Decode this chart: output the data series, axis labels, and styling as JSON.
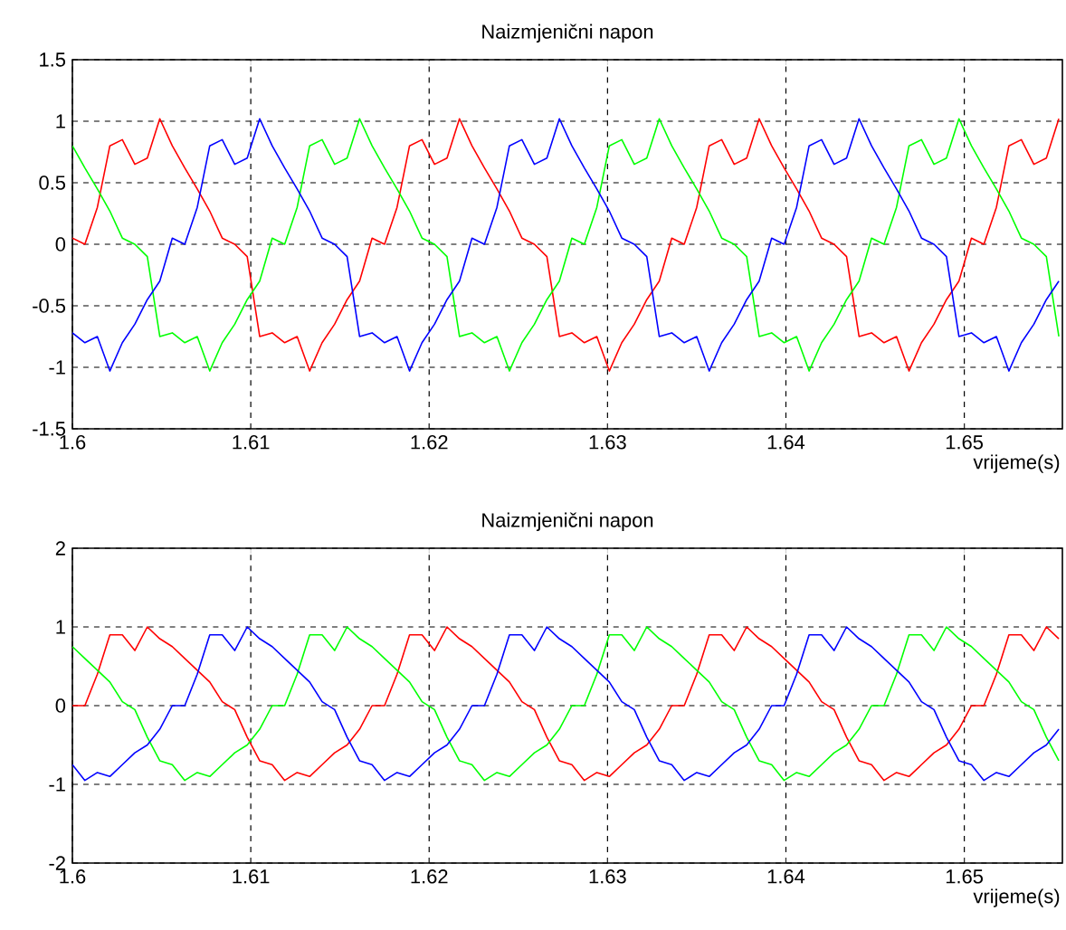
{
  "chart_data": [
    {
      "type": "line",
      "title": "Naizmjenični napon",
      "xlabel": "vrijeme(s)",
      "xlim": [
        1.6,
        1.6555
      ],
      "xticks": [
        1.6,
        1.61,
        1.62,
        1.63,
        1.64,
        1.65
      ],
      "ylim": [
        -1.5,
        1.5
      ],
      "yticks": [
        -1.5,
        -1,
        -0.5,
        0,
        0.5,
        1,
        1.5
      ],
      "grid": true,
      "x": [
        1.6,
        1.6007,
        1.6014,
        1.6021,
        1.6028,
        1.6035,
        1.6042,
        1.6049,
        1.6056,
        1.6063,
        1.607,
        1.6077,
        1.6084,
        1.6091,
        1.6098,
        1.6105,
        1.6112,
        1.6119,
        1.6126,
        1.6133,
        1.614,
        1.6147,
        1.6154,
        1.6161,
        1.6168,
        1.6175,
        1.6182,
        1.6189,
        1.6196,
        1.6203,
        1.621,
        1.6217,
        1.6224,
        1.6231,
        1.6238,
        1.6245,
        1.6252,
        1.6259,
        1.6266,
        1.6273,
        1.628,
        1.6287,
        1.6294,
        1.6301,
        1.6308,
        1.6315,
        1.6322,
        1.6329,
        1.6336,
        1.6343,
        1.635,
        1.6357,
        1.6364,
        1.6371,
        1.6378,
        1.6385,
        1.6392,
        1.6399,
        1.6406,
        1.6413,
        1.642,
        1.6427,
        1.6434,
        1.6441,
        1.6448,
        1.6455,
        1.6462,
        1.6469,
        1.6476,
        1.6483,
        1.649,
        1.6497,
        1.6504,
        1.6511,
        1.6518,
        1.6525,
        1.6532,
        1.6539,
        1.6546,
        1.6553
      ],
      "series": [
        {
          "color": "#ff0000",
          "values": [
            0.05,
            0,
            0.3,
            0.8,
            0.85,
            0.65,
            0.7,
            1.02,
            0.8,
            0.62,
            0.45,
            0.27,
            0.05,
            0,
            -0.1,
            -0.75,
            -0.72,
            -0.8,
            -0.75,
            -1.03,
            -0.8,
            -0.65,
            -0.45,
            -0.3,
            0.05,
            0,
            0.3,
            0.8,
            0.85,
            0.65,
            0.7,
            1.02,
            0.8,
            0.62,
            0.45,
            0.27,
            0.05,
            0,
            -0.1,
            -0.75,
            -0.72,
            -0.8,
            -0.75,
            -1.03,
            -0.8,
            -0.65,
            -0.45,
            -0.3,
            0.05,
            0,
            0.3,
            0.8,
            0.85,
            0.65,
            0.7,
            1.02,
            0.8,
            0.62,
            0.45,
            0.27,
            0.05,
            0,
            -0.1,
            -0.75,
            -0.72,
            -0.8,
            -0.75,
            -1.03,
            -0.8,
            -0.65,
            -0.45,
            -0.3,
            0.05,
            0,
            0.3,
            0.8,
            0.85,
            0.65,
            0.7,
            1.02
          ]
        },
        {
          "color": "#00ff00",
          "values": [
            0.8,
            0.62,
            0.45,
            0.27,
            0.05,
            0,
            -0.1,
            -0.75,
            -0.72,
            -0.8,
            -0.75,
            -1.03,
            -0.8,
            -0.65,
            -0.45,
            -0.3,
            0.05,
            0,
            0.3,
            0.8,
            0.85,
            0.65,
            0.7,
            1.02,
            0.8,
            0.62,
            0.45,
            0.27,
            0.05,
            0,
            -0.1,
            -0.75,
            -0.72,
            -0.8,
            -0.75,
            -1.03,
            -0.8,
            -0.65,
            -0.45,
            -0.3,
            0.05,
            0,
            0.3,
            0.8,
            0.85,
            0.65,
            0.7,
            1.02,
            0.8,
            0.62,
            0.45,
            0.27,
            0.05,
            0,
            -0.1,
            -0.75,
            -0.72,
            -0.8,
            -0.75,
            -1.03,
            -0.8,
            -0.65,
            -0.45,
            -0.3,
            0.05,
            0,
            0.3,
            0.8,
            0.85,
            0.65,
            0.7,
            1.02,
            0.8,
            0.62,
            0.45,
            0.27,
            0.05,
            0,
            -0.1,
            -0.75
          ]
        },
        {
          "color": "#0000ff",
          "values": [
            -0.72,
            -0.8,
            -0.75,
            -1.03,
            -0.8,
            -0.65,
            -0.45,
            -0.3,
            0.05,
            0,
            0.3,
            0.8,
            0.85,
            0.65,
            0.7,
            1.02,
            0.8,
            0.62,
            0.45,
            0.27,
            0.05,
            0,
            -0.1,
            -0.75,
            -0.72,
            -0.8,
            -0.75,
            -1.03,
            -0.8,
            -0.65,
            -0.45,
            -0.3,
            0.05,
            0,
            0.3,
            0.8,
            0.85,
            0.65,
            0.7,
            1.02,
            0.8,
            0.62,
            0.45,
            0.27,
            0.05,
            0,
            -0.1,
            -0.75,
            -0.72,
            -0.8,
            -0.75,
            -1.03,
            -0.8,
            -0.65,
            -0.45,
            -0.3,
            0.05,
            0,
            0.3,
            0.8,
            0.85,
            0.65,
            0.7,
            1.02,
            0.8,
            0.62,
            0.45,
            0.27,
            0.05,
            0,
            -0.1,
            -0.75,
            -0.72,
            -0.8,
            -0.75,
            -1.03,
            -0.8,
            -0.65,
            -0.45,
            -0.3
          ]
        }
      ]
    },
    {
      "type": "line",
      "title": "Naizmjenični napon",
      "xlabel": "vrijeme(s)",
      "xlim": [
        1.6,
        1.6555
      ],
      "xticks": [
        1.6,
        1.61,
        1.62,
        1.63,
        1.64,
        1.65
      ],
      "ylim": [
        -2,
        2
      ],
      "yticks": [
        -2,
        -1,
        0,
        1,
        2
      ],
      "grid": true,
      "x": [
        1.6,
        1.6007,
        1.6014,
        1.6021,
        1.6028,
        1.6035,
        1.6042,
        1.6049,
        1.6056,
        1.6063,
        1.607,
        1.6077,
        1.6084,
        1.6091,
        1.6098,
        1.6105,
        1.6112,
        1.6119,
        1.6126,
        1.6133,
        1.614,
        1.6147,
        1.6154,
        1.6161,
        1.6168,
        1.6175,
        1.6182,
        1.6189,
        1.6196,
        1.6203,
        1.621,
        1.6217,
        1.6224,
        1.6231,
        1.6238,
        1.6245,
        1.6252,
        1.6259,
        1.6266,
        1.6273,
        1.628,
        1.6287,
        1.6294,
        1.6301,
        1.6308,
        1.6315,
        1.6322,
        1.6329,
        1.6336,
        1.6343,
        1.635,
        1.6357,
        1.6364,
        1.6371,
        1.6378,
        1.6385,
        1.6392,
        1.6399,
        1.6406,
        1.6413,
        1.642,
        1.6427,
        1.6434,
        1.6441,
        1.6448,
        1.6455,
        1.6462,
        1.6469,
        1.6476,
        1.6483,
        1.649,
        1.6497,
        1.6504,
        1.6511,
        1.6518,
        1.6525,
        1.6532,
        1.6539,
        1.6546,
        1.6553
      ],
      "series": [
        {
          "color": "#ff0000",
          "values": [
            0,
            0,
            0.4,
            0.9,
            0.9,
            0.7,
            1.0,
            0.85,
            0.75,
            0.6,
            0.45,
            0.3,
            0.05,
            -0.05,
            -0.4,
            -0.7,
            -0.75,
            -0.95,
            -0.85,
            -0.9,
            -0.75,
            -0.6,
            -0.5,
            -0.3,
            0,
            0,
            0.4,
            0.9,
            0.9,
            0.7,
            1.0,
            0.85,
            0.75,
            0.6,
            0.45,
            0.3,
            0.05,
            -0.05,
            -0.4,
            -0.7,
            -0.75,
            -0.95,
            -0.85,
            -0.9,
            -0.75,
            -0.6,
            -0.5,
            -0.3,
            0,
            0,
            0.4,
            0.9,
            0.9,
            0.7,
            1.0,
            0.85,
            0.75,
            0.6,
            0.45,
            0.3,
            0.05,
            -0.05,
            -0.4,
            -0.7,
            -0.75,
            -0.95,
            -0.85,
            -0.9,
            -0.75,
            -0.6,
            -0.5,
            -0.3,
            0,
            0,
            0.4,
            0.9,
            0.9,
            0.7,
            1.0,
            0.85
          ]
        },
        {
          "color": "#00ff00",
          "values": [
            0.75,
            0.6,
            0.45,
            0.3,
            0.05,
            -0.05,
            -0.4,
            -0.7,
            -0.75,
            -0.95,
            -0.85,
            -0.9,
            -0.75,
            -0.6,
            -0.5,
            -0.3,
            0,
            0,
            0.4,
            0.9,
            0.9,
            0.7,
            1.0,
            0.85,
            0.75,
            0.6,
            0.45,
            0.3,
            0.05,
            -0.05,
            -0.4,
            -0.7,
            -0.75,
            -0.95,
            -0.85,
            -0.9,
            -0.75,
            -0.6,
            -0.5,
            -0.3,
            0,
            0,
            0.4,
            0.9,
            0.9,
            0.7,
            1.0,
            0.85,
            0.75,
            0.6,
            0.45,
            0.3,
            0.05,
            -0.05,
            -0.4,
            -0.7,
            -0.75,
            -0.95,
            -0.85,
            -0.9,
            -0.75,
            -0.6,
            -0.5,
            -0.3,
            0,
            0,
            0.4,
            0.9,
            0.9,
            0.7,
            1.0,
            0.85,
            0.75,
            0.6,
            0.45,
            0.3,
            0.05,
            -0.05,
            -0.4,
            -0.7
          ]
        },
        {
          "color": "#0000ff",
          "values": [
            -0.75,
            -0.95,
            -0.85,
            -0.9,
            -0.75,
            -0.6,
            -0.5,
            -0.3,
            0,
            0,
            0.4,
            0.9,
            0.9,
            0.7,
            1.0,
            0.85,
            0.75,
            0.6,
            0.45,
            0.3,
            0.05,
            -0.05,
            -0.4,
            -0.7,
            -0.75,
            -0.95,
            -0.85,
            -0.9,
            -0.75,
            -0.6,
            -0.5,
            -0.3,
            0,
            0,
            0.4,
            0.9,
            0.9,
            0.7,
            1.0,
            0.85,
            0.75,
            0.6,
            0.45,
            0.3,
            0.05,
            -0.05,
            -0.4,
            -0.7,
            -0.75,
            -0.95,
            -0.85,
            -0.9,
            -0.75,
            -0.6,
            -0.5,
            -0.3,
            0,
            0,
            0.4,
            0.9,
            0.9,
            0.7,
            1.0,
            0.85,
            0.75,
            0.6,
            0.45,
            0.3,
            0.05,
            -0.05,
            -0.4,
            -0.7,
            -0.75,
            -0.95,
            -0.85,
            -0.9,
            -0.75,
            -0.6,
            -0.5,
            -0.3
          ]
        }
      ]
    }
  ]
}
